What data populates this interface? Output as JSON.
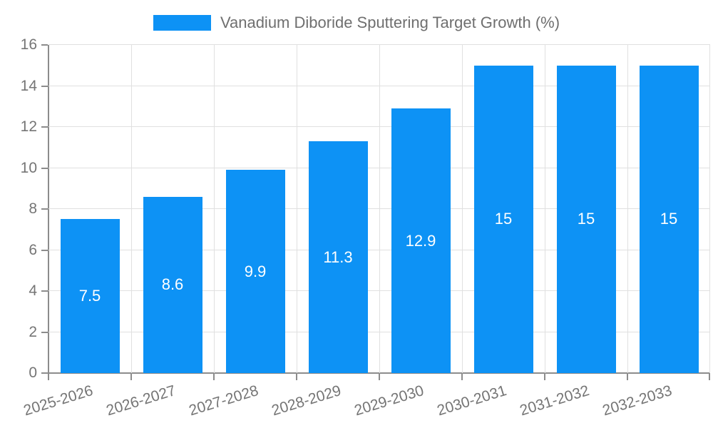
{
  "chart_data": {
    "type": "bar",
    "title": "Vanadium Diboride Sputtering Target Growth (%)",
    "categories": [
      "2025-2026",
      "2026-2027",
      "2027-2028",
      "2028-2029",
      "2029-2030",
      "2030-2031",
      "2031-2032",
      "2032-2033"
    ],
    "values": [
      7.5,
      8.6,
      9.9,
      11.3,
      12.9,
      15,
      15,
      15
    ],
    "value_labels": [
      "7.5",
      "8.6",
      "9.9",
      "11.3",
      "12.9",
      "15",
      "15",
      "15"
    ],
    "xlabel": "",
    "ylabel": "",
    "ylim": [
      0,
      16
    ],
    "yticks": [
      0,
      2,
      4,
      6,
      8,
      10,
      12,
      14,
      16
    ],
    "grid": "on",
    "legend_position": "top-center",
    "colors": {
      "bar": "#0d92f5",
      "bar_value_label": "#ffffff",
      "axis": "#8c8c8c",
      "gridline": "#e0e0e0",
      "tick_label": "#757575",
      "legend_text": "#6f6f6f",
      "background": "#ffffff"
    }
  }
}
